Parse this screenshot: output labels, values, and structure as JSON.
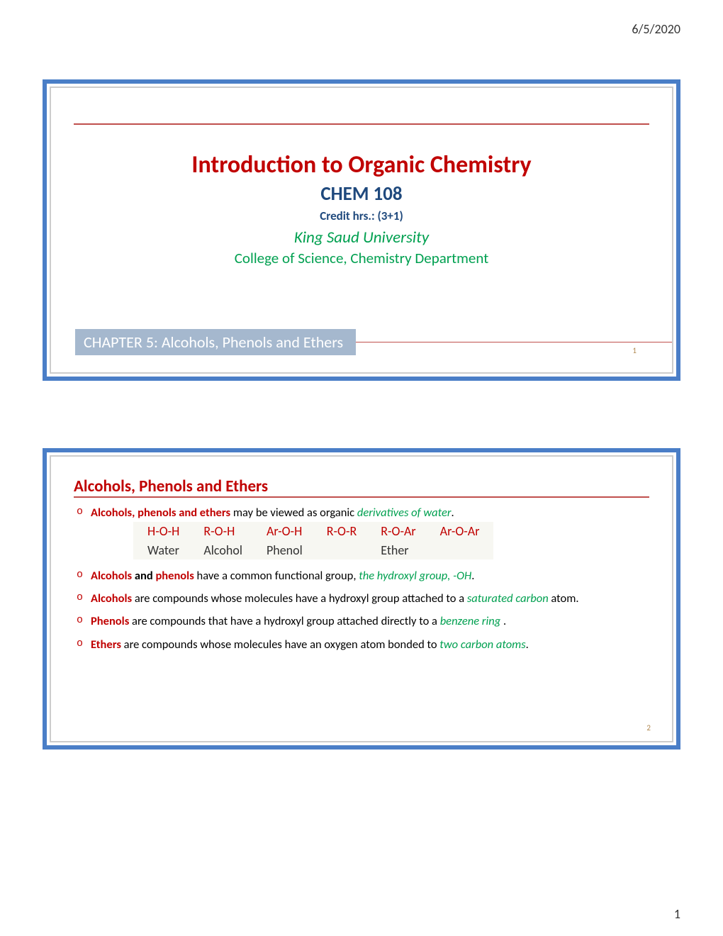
{
  "meta": {
    "date": "6/5/2020",
    "page_number": "1"
  },
  "slide1": {
    "title": "Introduction to Organic Chemistry",
    "subtitle": "CHEM 108",
    "credit": "Credit hrs.: (3+1)",
    "university": "King Saud University",
    "department": "College of Science, Chemistry Department",
    "chapter": "CHAPTER 5: Alcohols, Phenols and Ethers",
    "slide_num": "1"
  },
  "slide2": {
    "heading": "Alcohols, Phenols and Ethers",
    "slide_num": "2",
    "bullet1": {
      "red": "Alcohols,  phenols and ethers",
      "rest": " may be viewed as organic ",
      "green": "derivatives of water",
      "tail": "."
    },
    "formulas": {
      "row1": [
        "H-O-H",
        "R-O-H",
        "Ar-O-H",
        "R-O-R",
        "R-O-Ar",
        "Ar-O-Ar"
      ],
      "row2": [
        "Water",
        "Alcohol",
        "Phenol",
        "",
        "Ether",
        ""
      ]
    },
    "bullet2": {
      "red1": "Alcohols",
      "mid1": " and ",
      "red2": "phenols",
      "rest": " have a common functional group, ",
      "green": "the hydroxyl group, -OH",
      "tail": "."
    },
    "bullet3": {
      "red": "Alcohols",
      "rest": " are compounds whose molecules have a hydroxyl group attached to a ",
      "green": "saturated carbon",
      "tail": " atom."
    },
    "bullet4": {
      "red": "Phenols",
      "rest": "  are compounds that have a hydroxyl group attached directly to a ",
      "green": "benzene ring ",
      "tail": "."
    },
    "bullet5": {
      "red": "Ethers",
      "rest": " are compounds whose molecules have an oxygen atom bonded to ",
      "green": "two carbon atoms",
      "tail": "."
    }
  }
}
